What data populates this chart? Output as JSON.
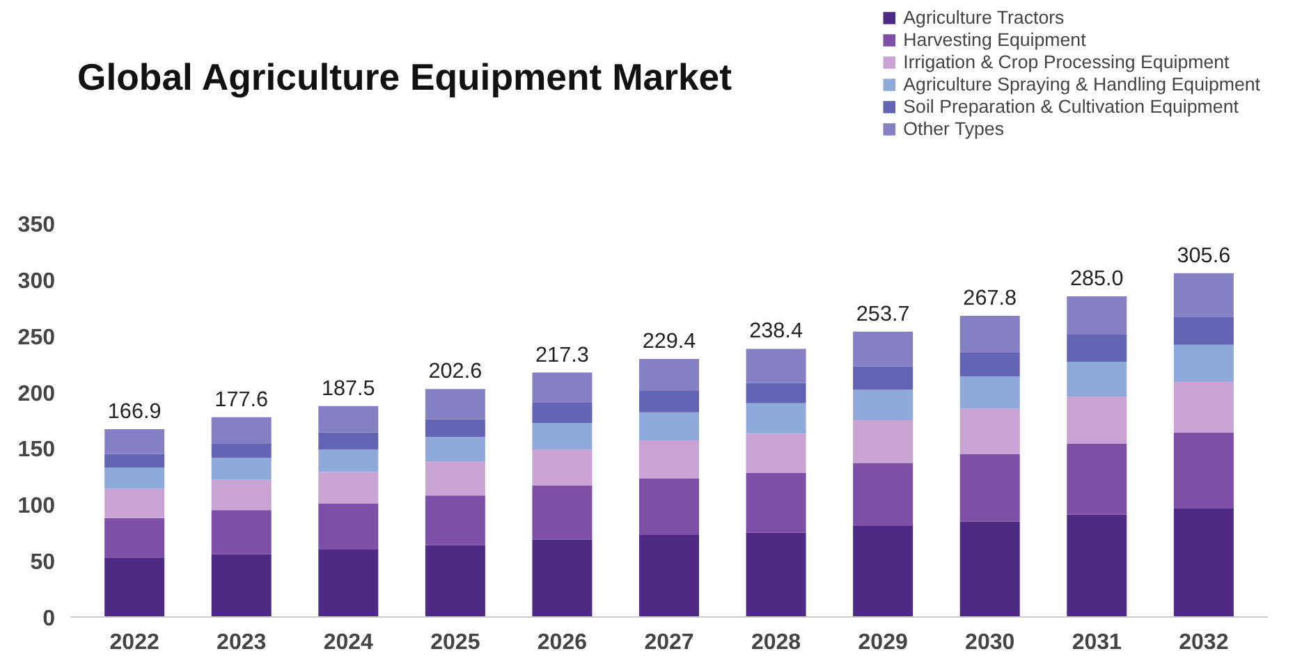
{
  "chart_data": {
    "type": "bar",
    "title": "Global Agriculture Equipment Market",
    "categories": [
      "2022",
      "2023",
      "2024",
      "2025",
      "2026",
      "2027",
      "2028",
      "2029",
      "2030",
      "2031",
      "2032"
    ],
    "stacked": true,
    "series": [
      {
        "name": "Agriculture Tractors",
        "color": "#4e2a84",
        "values": [
          53,
          56,
          60,
          64,
          69,
          73,
          75,
          81,
          85,
          91,
          97
        ]
      },
      {
        "name": "Harvesting Equipment",
        "color": "#7e4fa6",
        "values": [
          35,
          39,
          41,
          44,
          48,
          50,
          53,
          56,
          60,
          63,
          67
        ]
      },
      {
        "name": "Irrigation & Crop Processing Equipment",
        "color": "#c9a3d3",
        "values": [
          26,
          27,
          28,
          30,
          32,
          34,
          35,
          38,
          40,
          42,
          45
        ]
      },
      {
        "name": "Agriculture Spraying & Handling Equipment",
        "color": "#8fa9db",
        "values": [
          19,
          19.5,
          20,
          22,
          23.5,
          25,
          27,
          27,
          29,
          31,
          33
        ]
      },
      {
        "name": "Soil Preparation & Cultivation Equipment",
        "color": "#6464b4",
        "values": [
          12,
          12.5,
          15,
          16,
          18,
          19,
          18,
          21,
          21,
          24,
          25
        ]
      },
      {
        "name": "Other Types",
        "color": "#8580c4",
        "values": [
          21.9,
          23.6,
          23.5,
          26.6,
          26.8,
          28.4,
          30.4,
          30.7,
          32.8,
          34,
          38.6
        ]
      }
    ],
    "totals": [
      "166.9",
      "177.6",
      "187.5",
      "202.6",
      "217.3",
      "229.4",
      "238.4",
      "253.7",
      "267.8",
      "285.0",
      "305.6"
    ],
    "ylim": [
      0,
      350
    ],
    "yticks": [
      0,
      50,
      100,
      150,
      200,
      250,
      300,
      350
    ],
    "grid": false,
    "legend": "top right"
  }
}
